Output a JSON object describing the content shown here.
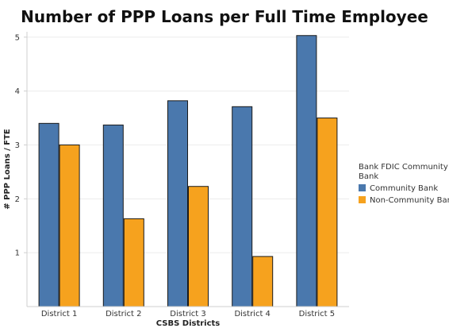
{
  "chart_data": {
    "type": "bar",
    "title": "Number of PPP Loans per Full Time Employee",
    "xlabel": "CSBS Districts",
    "ylabel": "# PPP Loans / FTE",
    "categories": [
      "District 1",
      "District 2",
      "District 3",
      "District 4",
      "District 5"
    ],
    "series": [
      {
        "name": "Community Bank",
        "color": "#4a78ad",
        "values": [
          3.4,
          3.37,
          3.82,
          3.71,
          5.03
        ]
      },
      {
        "name": "Non-Community Bank",
        "color": "#f6a21e",
        "values": [
          3.0,
          1.63,
          2.23,
          0.93,
          3.5
        ]
      }
    ],
    "ylim": [
      0,
      5.1
    ],
    "yticks": [
      1,
      2,
      3,
      4,
      5
    ],
    "grid": true,
    "legend": {
      "title": "Bank FDIC Community Bank",
      "position": "right"
    }
  }
}
